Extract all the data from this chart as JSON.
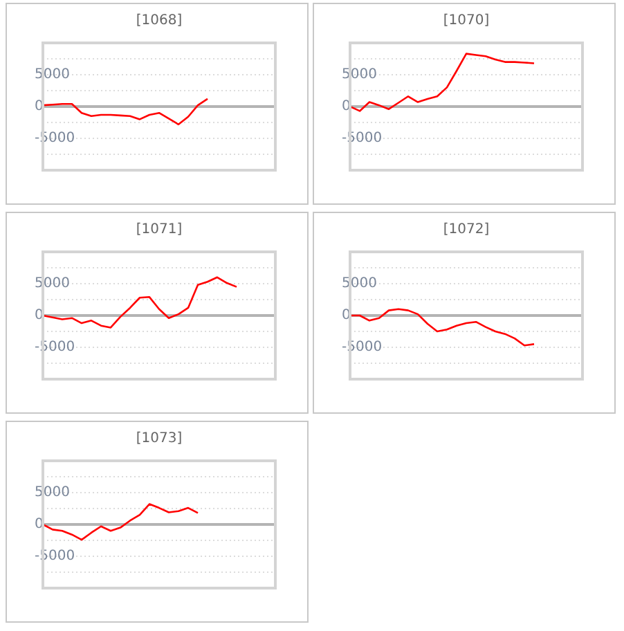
{
  "chart_data": [
    {
      "type": "line",
      "title": "[1068]",
      "categories": [
        null,
        null,
        null,
        null,
        null,
        null,
        null,
        null,
        null,
        null,
        null,
        null,
        null,
        null,
        null,
        null,
        null,
        null,
        null,
        null,
        null,
        null,
        null,
        null,
        null
      ],
      "ylim": [
        -10000,
        10000
      ],
      "yticks": [
        {
          "value": -7500,
          "label": null
        },
        -5000,
        {
          "value": -2500,
          "label": null
        },
        0,
        {
          "value": 2500,
          "label": null
        },
        5000,
        {
          "value": 7500,
          "label": null
        }
      ],
      "grid": "y",
      "marker": "none",
      "tick_labels": "y",
      "ref_lines": [
        {
          "axis": "y",
          "value": 0,
          "color": "#b4b4b4"
        }
      ],
      "series": [
        {
          "color": "#ff0000",
          "values": [
            200,
            300,
            400,
            400,
            -1000,
            -1500,
            -1300,
            -1300,
            -1400,
            -1500,
            -2000,
            -1300,
            -1000,
            -1900,
            -2800,
            -1600,
            200,
            1200,
            null,
            null,
            null,
            null,
            null,
            null,
            null
          ]
        }
      ]
    },
    {
      "type": "line",
      "title": "[1070]",
      "categories": [
        null,
        null,
        null,
        null,
        null,
        null,
        null,
        null,
        null,
        null,
        null,
        null,
        null,
        null,
        null,
        null,
        null,
        null,
        null,
        null,
        null,
        null,
        null,
        null,
        null
      ],
      "ylim": [
        -10000,
        10000
      ],
      "yticks": [
        {
          "value": -7500,
          "label": null
        },
        -5000,
        {
          "value": -2500,
          "label": null
        },
        0,
        {
          "value": 2500,
          "label": null
        },
        5000,
        {
          "value": 7500,
          "label": null
        }
      ],
      "grid": "y",
      "marker": "none",
      "tick_labels": "y",
      "ref_lines": [
        {
          "axis": "y",
          "value": 0,
          "color": "#b4b4b4"
        }
      ],
      "series": [
        {
          "color": "#ff0000",
          "values": [
            0,
            -700,
            700,
            200,
            -400,
            600,
            1600,
            700,
            1200,
            1600,
            3000,
            5600,
            8300,
            8100,
            7900,
            7400,
            7000,
            7000,
            6900,
            6800,
            null,
            null,
            null,
            null,
            null
          ]
        }
      ]
    },
    {
      "type": "line",
      "title": "[1071]",
      "categories": [
        null,
        null,
        null,
        null,
        null,
        null,
        null,
        null,
        null,
        null,
        null,
        null,
        null,
        null,
        null,
        null,
        null,
        null,
        null,
        null,
        null,
        null,
        null,
        null,
        null
      ],
      "ylim": [
        -10000,
        10000
      ],
      "yticks": [
        {
          "value": -7500,
          "label": null
        },
        -5000,
        {
          "value": -2500,
          "label": null
        },
        0,
        {
          "value": 2500,
          "label": null
        },
        5000,
        {
          "value": 7500,
          "label": null
        }
      ],
      "grid": "y",
      "marker": "none",
      "tick_labels": "y",
      "ref_lines": [
        {
          "axis": "y",
          "value": 0,
          "color": "#b4b4b4"
        }
      ],
      "series": [
        {
          "color": "#ff0000",
          "values": [
            0,
            -300,
            -600,
            -400,
            -1200,
            -800,
            -1600,
            -1900,
            -200,
            1200,
            2800,
            2900,
            1000,
            -400,
            200,
            1200,
            4800,
            5300,
            6000,
            5100,
            4500,
            null,
            null,
            null,
            null
          ]
        }
      ]
    },
    {
      "type": "line",
      "title": "[1072]",
      "categories": [
        null,
        null,
        null,
        null,
        null,
        null,
        null,
        null,
        null,
        null,
        null,
        null,
        null,
        null,
        null,
        null,
        null,
        null,
        null,
        null,
        null,
        null,
        null,
        null,
        null
      ],
      "ylim": [
        -10000,
        10000
      ],
      "yticks": [
        {
          "value": -7500,
          "label": null
        },
        -5000,
        {
          "value": -2500,
          "label": null
        },
        0,
        {
          "value": 2500,
          "label": null
        },
        5000,
        {
          "value": 7500,
          "label": null
        }
      ],
      "grid": "y",
      "marker": "none",
      "tick_labels": "y",
      "ref_lines": [
        {
          "axis": "y",
          "value": 0,
          "color": "#b4b4b4"
        }
      ],
      "series": [
        {
          "color": "#ff0000",
          "values": [
            0,
            0,
            -800,
            -400,
            800,
            1000,
            800,
            200,
            -1300,
            -2500,
            -2200,
            -1600,
            -1200,
            -1000,
            -1800,
            -2500,
            -2900,
            -3600,
            -4700,
            -4500,
            null,
            null,
            null,
            null,
            null
          ]
        }
      ]
    },
    {
      "type": "line",
      "title": "[1073]",
      "categories": [
        null,
        null,
        null,
        null,
        null,
        null,
        null,
        null,
        null,
        null,
        null,
        null,
        null,
        null,
        null,
        null,
        null,
        null,
        null,
        null,
        null,
        null,
        null,
        null,
        null
      ],
      "ylim": [
        -10000,
        10000
      ],
      "yticks": [
        {
          "value": -7500,
          "label": null
        },
        -5000,
        {
          "value": -2500,
          "label": null
        },
        0,
        {
          "value": 2500,
          "label": null
        },
        5000,
        {
          "value": 7500,
          "label": null
        }
      ],
      "grid": "y",
      "marker": "none",
      "tick_labels": "y",
      "ref_lines": [
        {
          "axis": "y",
          "value": 0,
          "color": "#b4b4b4"
        }
      ],
      "series": [
        {
          "color": "#ff0000",
          "values": [
            0,
            -800,
            -1000,
            -1600,
            -2400,
            -1300,
            -300,
            -1000,
            -500,
            600,
            1500,
            3200,
            2600,
            1900,
            2100,
            2600,
            1800,
            null,
            null,
            null,
            null,
            null,
            null,
            null,
            null
          ]
        }
      ]
    }
  ]
}
